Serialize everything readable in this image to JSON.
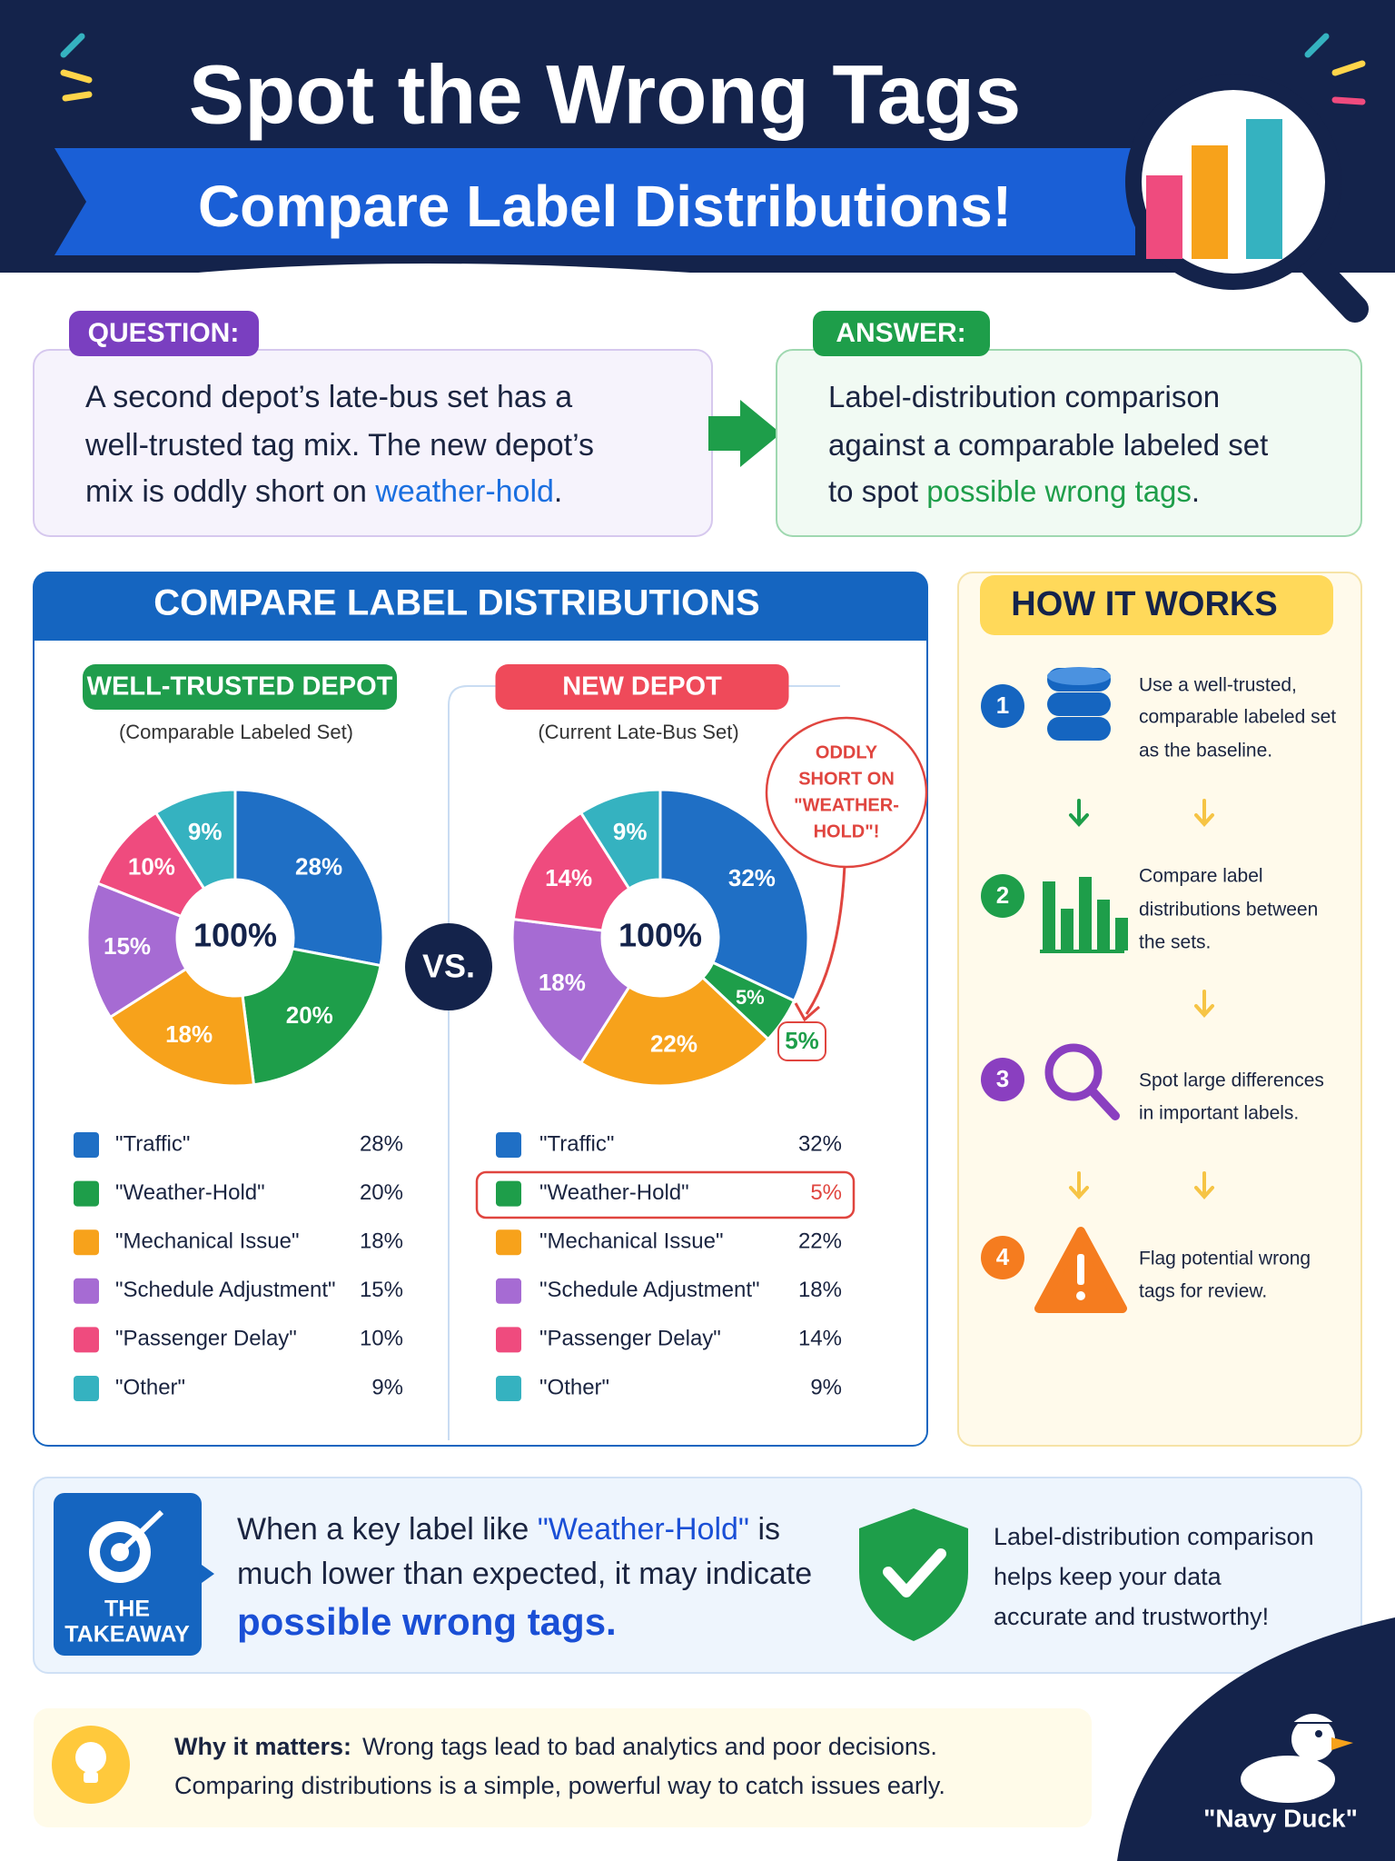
{
  "header": {
    "title": "Spot the Wrong Tags",
    "subtitle": "Compare Label Distributions!"
  },
  "question": {
    "label": "QUESTION:",
    "lines": [
      [
        "A second depot’s late-bus set has a"
      ],
      [
        "well-trusted tag mix. The new depot’s"
      ],
      [
        "mix is oddly short on ",
        "weather-hold",
        "."
      ]
    ]
  },
  "answer": {
    "label": "ANSWER:",
    "lines": [
      [
        "Label-distribution comparison"
      ],
      [
        "against a comparable labeled set"
      ],
      [
        "to spot ",
        "possible wrong tags",
        "."
      ]
    ]
  },
  "compare": {
    "title": "COMPARE LABEL DISTRIBUTIONS",
    "vs": "VS."
  },
  "chart_data": [
    {
      "type": "pie",
      "donut": true,
      "title": "WELL-TRUSTED DEPOT",
      "subtitle": "(Comparable Labeled Set)",
      "center_label": "100%",
      "categories": [
        "\"Traffic\"",
        "\"Weather-Hold\"",
        "\"Mechanical Issue\"",
        "\"Schedule Adjustment\"",
        "\"Passenger Delay\"",
        "\"Other\""
      ],
      "values": [
        28,
        20,
        18,
        15,
        10,
        9
      ],
      "value_labels": [
        "28%",
        "20%",
        "18%",
        "15%",
        "10%",
        "9%"
      ],
      "colors": [
        "#1f6fc5",
        "#1e9e4a",
        "#f7a21b",
        "#a66bd3",
        "#ef4b7e",
        "#35b2c0"
      ],
      "title_color": "#1f9d4c"
    },
    {
      "type": "pie",
      "donut": true,
      "title": "NEW DEPOT",
      "subtitle": "(Current Late-Bus Set)",
      "center_label": "100%",
      "categories": [
        "\"Traffic\"",
        "\"Weather-Hold\"",
        "\"Mechanical Issue\"",
        "\"Schedule Adjustment\"",
        "\"Passenger Delay\"",
        "\"Other\""
      ],
      "values": [
        32,
        5,
        22,
        18,
        14,
        9
      ],
      "value_labels": [
        "32%",
        "5%",
        "22%",
        "18%",
        "14%",
        "9%"
      ],
      "colors": [
        "#1f6fc5",
        "#1e9e4a",
        "#f7a21b",
        "#a66bd3",
        "#ef4b7e",
        "#35b2c0"
      ],
      "title_color": "#ef4a5a",
      "annotation": [
        "ODDLY",
        "SHORT ON",
        "\"WEATHER-",
        "HOLD\"!"
      ]
    }
  ],
  "how_it_works": {
    "title": "HOW IT WORKS",
    "steps": [
      {
        "number": 1,
        "lines": [
          "Use a well-trusted,",
          "comparable labeled set",
          "as the baseline."
        ]
      },
      {
        "number": 2,
        "lines": [
          "Compare label",
          "distributions between",
          "the sets."
        ]
      },
      {
        "number": 3,
        "lines": [
          "Spot large differences",
          "in important labels."
        ]
      },
      {
        "number": 4,
        "lines": [
          "Flag potential wrong",
          "tags for review."
        ]
      }
    ]
  },
  "takeaway": {
    "label": [
      "THE",
      "TAKEAWAY"
    ],
    "lines": [
      [
        "When a key label like ",
        "\"Weather-Hold\"",
        " is"
      ],
      [
        "much lower than expected, it may indicate"
      ],
      [
        "possible wrong tags."
      ]
    ],
    "note": [
      "Label-distribution comparison",
      "helps keep your data",
      "accurate and trustworthy!"
    ]
  },
  "why": {
    "lead": "Why it matters:",
    "lines": [
      "Wrong tags lead to bad analytics and poor decisions.",
      "Comparing distributions is a simple, powerful way to catch issues early."
    ]
  },
  "brand": "\"Navy Duck\""
}
